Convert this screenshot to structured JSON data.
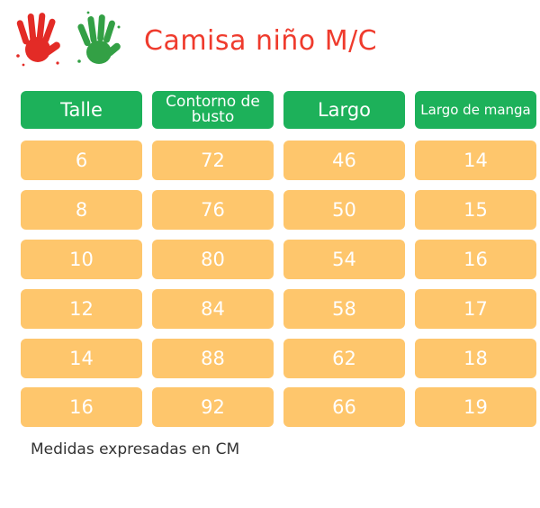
{
  "title": "Camisa niño M/C",
  "headers": [
    "Talle",
    "Contorno de busto",
    "Largo",
    "Largo de manga"
  ],
  "rows": [
    [
      "6",
      "72",
      "46",
      "14"
    ],
    [
      "8",
      "76",
      "50",
      "15"
    ],
    [
      "10",
      "80",
      "54",
      "16"
    ],
    [
      "12",
      "84",
      "58",
      "17"
    ],
    [
      "14",
      "88",
      "62",
      "18"
    ],
    [
      "16",
      "92",
      "66",
      "19"
    ]
  ],
  "note": "Medidas expresadas en CM",
  "colors": {
    "title": "#ef3b2d",
    "header": "#1db15a",
    "cell": "#fec66c",
    "hand_red": "#e32b26",
    "hand_green": "#33a045"
  },
  "icons": [
    "red-hand-print-icon",
    "green-hand-print-icon"
  ]
}
